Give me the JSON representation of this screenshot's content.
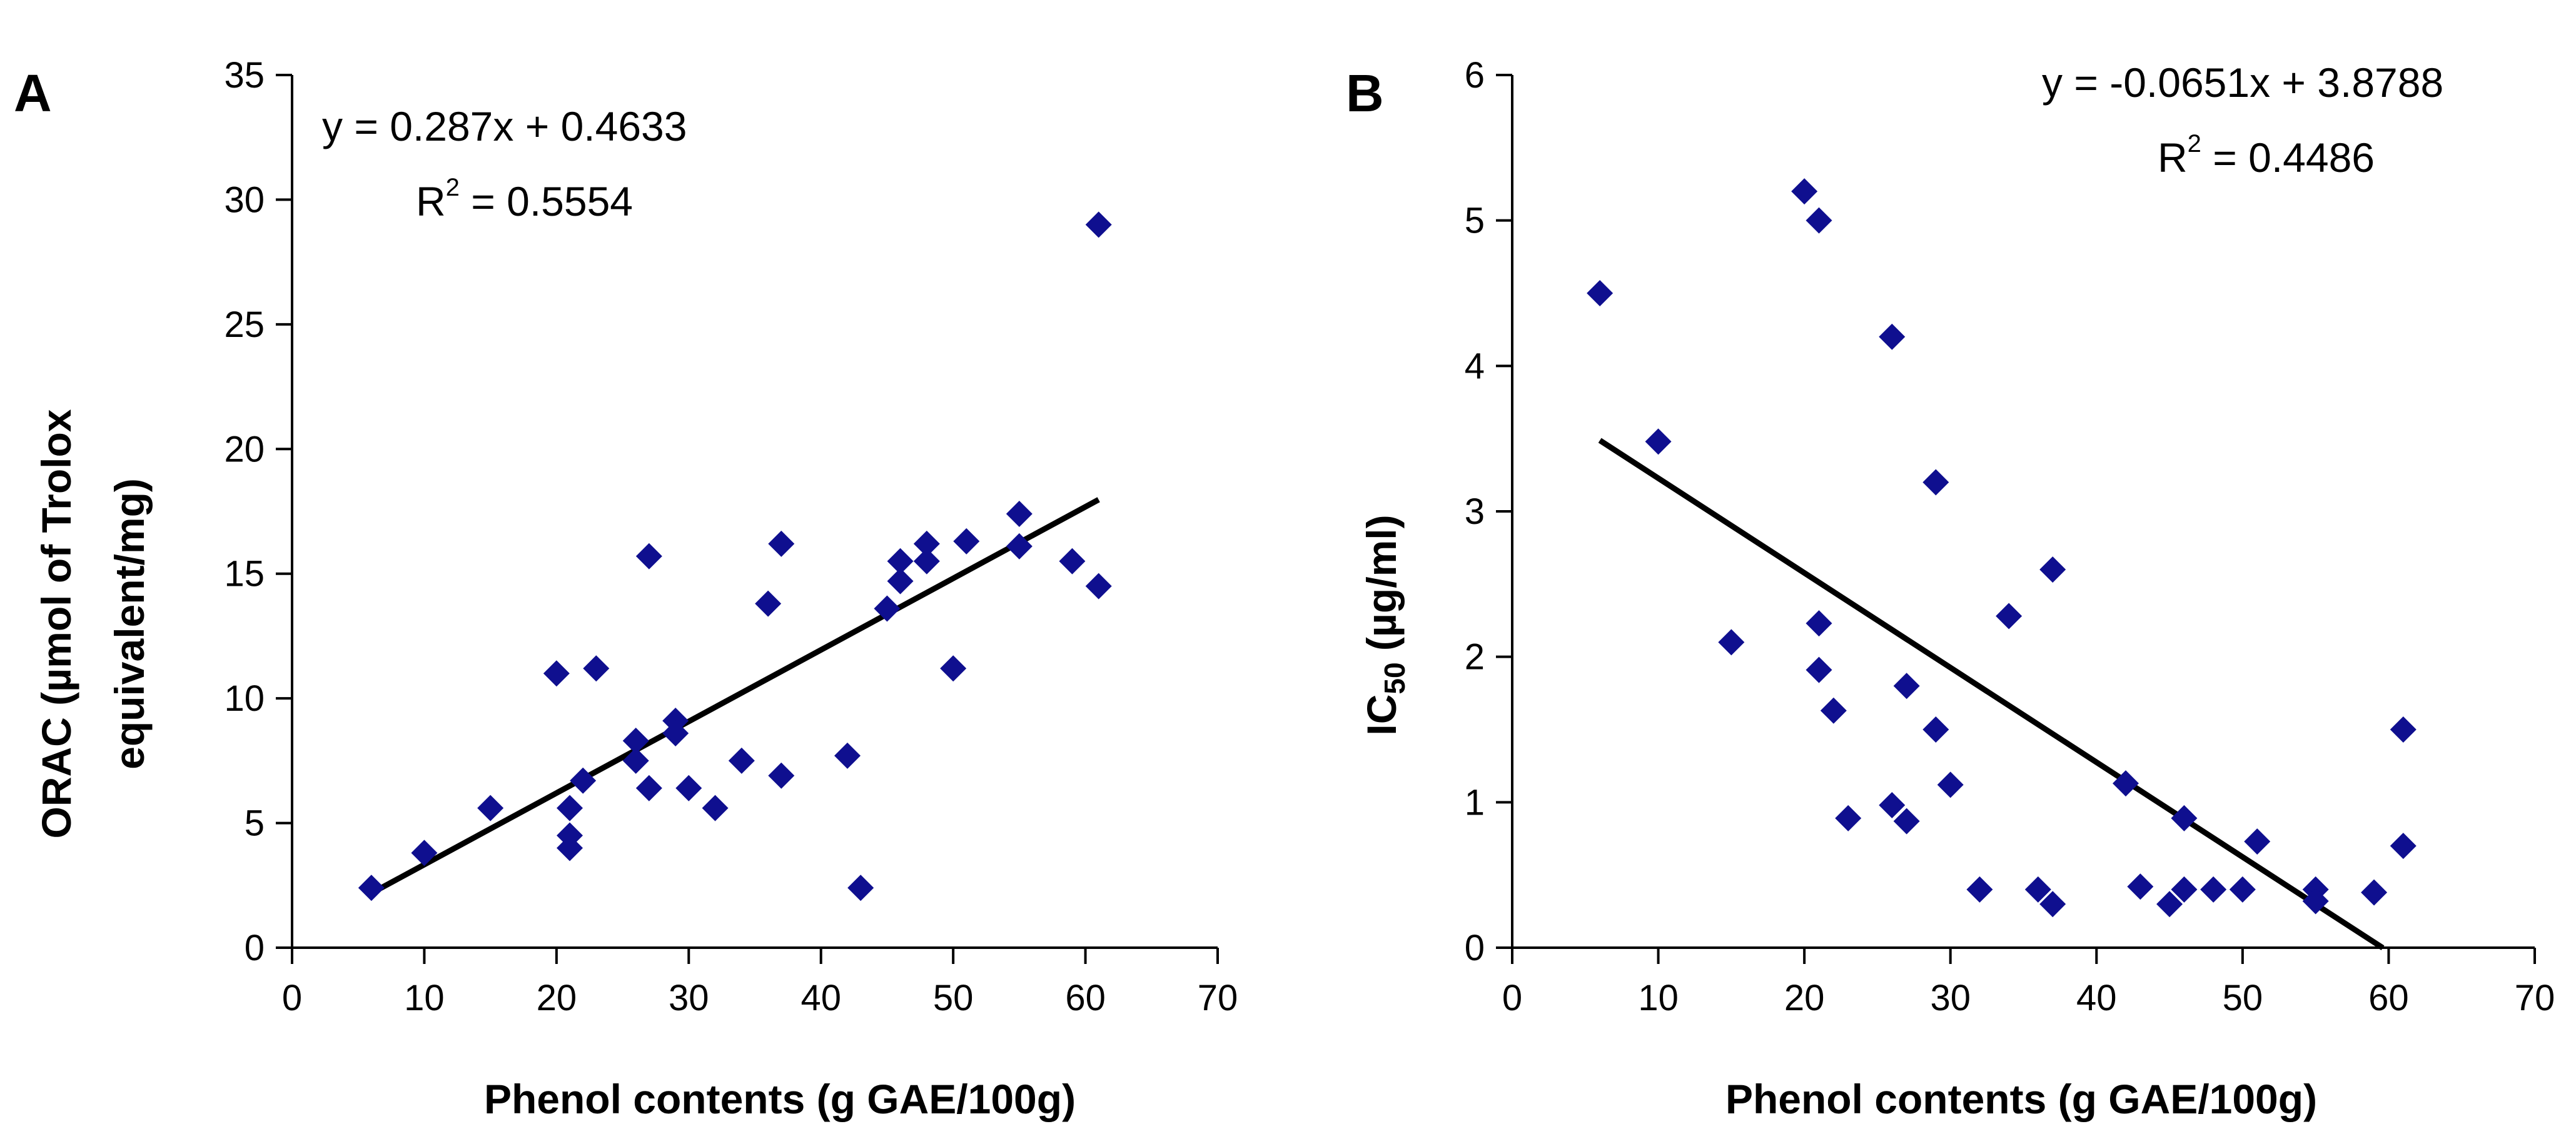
{
  "chart_data": [
    {
      "panel": "A",
      "type": "scatter",
      "xlabel": "Phenol contents (g GAE/100g)",
      "ylabel_lines": [
        "ORAC (µmol of Trolox",
        "equivalent/mg)"
      ],
      "xlim": [
        0,
        70
      ],
      "ylim": [
        0,
        35
      ],
      "xticks": [
        0,
        10,
        20,
        30,
        40,
        50,
        60,
        70
      ],
      "yticks": [
        0,
        5,
        10,
        15,
        20,
        25,
        30,
        35
      ],
      "grid": false,
      "marker": "diamond",
      "color": "#0f0f8f",
      "equation": "y = 0.287x + 0.4633",
      "r2_label": "R",
      "r2_sup": "2",
      "r2_value": " = 0.5554",
      "trendline": {
        "slope": 0.287,
        "intercept": 0.4633,
        "x_range": [
          6,
          61
        ]
      },
      "points": [
        [
          6,
          2.4
        ],
        [
          10,
          3.8
        ],
        [
          15,
          5.6
        ],
        [
          20,
          11
        ],
        [
          21,
          5.6
        ],
        [
          21,
          4.5
        ],
        [
          21,
          4
        ],
        [
          22,
          6.7
        ],
        [
          23,
          11.2
        ],
        [
          26,
          8.3
        ],
        [
          26,
          7.5
        ],
        [
          27,
          15.7
        ],
        [
          27,
          6.4
        ],
        [
          29,
          9.1
        ],
        [
          29,
          8.6
        ],
        [
          30,
          6.4
        ],
        [
          32,
          5.6
        ],
        [
          34,
          7.5
        ],
        [
          36,
          13.8
        ],
        [
          37,
          16.2
        ],
        [
          37,
          6.9
        ],
        [
          42,
          7.7
        ],
        [
          43,
          2.4
        ],
        [
          45,
          13.6
        ],
        [
          46,
          14.7
        ],
        [
          46,
          15.5
        ],
        [
          48,
          16.2
        ],
        [
          48,
          15.5
        ],
        [
          50,
          11.2
        ],
        [
          51,
          16.3
        ],
        [
          55,
          17.4
        ],
        [
          55,
          16.1
        ],
        [
          59,
          15.5
        ],
        [
          61,
          29
        ],
        [
          61,
          14.5
        ]
      ]
    },
    {
      "panel": "B",
      "type": "scatter",
      "xlabel": "Phenol contents (g GAE/100g)",
      "ylabel_main": "IC",
      "ylabel_sub": "50",
      "ylabel_rest": " (µg/ml)",
      "xlim": [
        0,
        70
      ],
      "ylim": [
        0,
        6
      ],
      "xticks": [
        0,
        10,
        20,
        30,
        40,
        50,
        60,
        70
      ],
      "yticks": [
        0,
        1,
        2,
        3,
        4,
        5,
        6
      ],
      "grid": false,
      "marker": "diamond",
      "color": "#0f0f8f",
      "equation": "y = -0.0651x + 3.8788",
      "r2_label": "R",
      "r2_sup": "2",
      "r2_value": " = 0.4486",
      "trendline": {
        "slope": -0.0651,
        "intercept": 3.8788,
        "x_range": [
          6,
          59.6
        ]
      },
      "points": [
        [
          6,
          4.5
        ],
        [
          10,
          3.48
        ],
        [
          15,
          2.1
        ],
        [
          20,
          5.2
        ],
        [
          21,
          5
        ],
        [
          21,
          2.23
        ],
        [
          21,
          1.91
        ],
        [
          22,
          1.63
        ],
        [
          23,
          0.89
        ],
        [
          26,
          4.2
        ],
        [
          26,
          0.98
        ],
        [
          27,
          1.8
        ],
        [
          27,
          0.87
        ],
        [
          29,
          3.2
        ],
        [
          29,
          1.5
        ],
        [
          30,
          1.12
        ],
        [
          32,
          0.4
        ],
        [
          34,
          2.28
        ],
        [
          36,
          0.4
        ],
        [
          37,
          2.6
        ],
        [
          37,
          0.3
        ],
        [
          42,
          1.13
        ],
        [
          43,
          0.42
        ],
        [
          45,
          0.3
        ],
        [
          46,
          0.89
        ],
        [
          46,
          0.4
        ],
        [
          48,
          0.4
        ],
        [
          50,
          0.4
        ],
        [
          51,
          0.73
        ],
        [
          55,
          0.4
        ],
        [
          55,
          0.32
        ],
        [
          59,
          0.38
        ],
        [
          61,
          1.5
        ],
        [
          61,
          0.7
        ]
      ]
    }
  ]
}
